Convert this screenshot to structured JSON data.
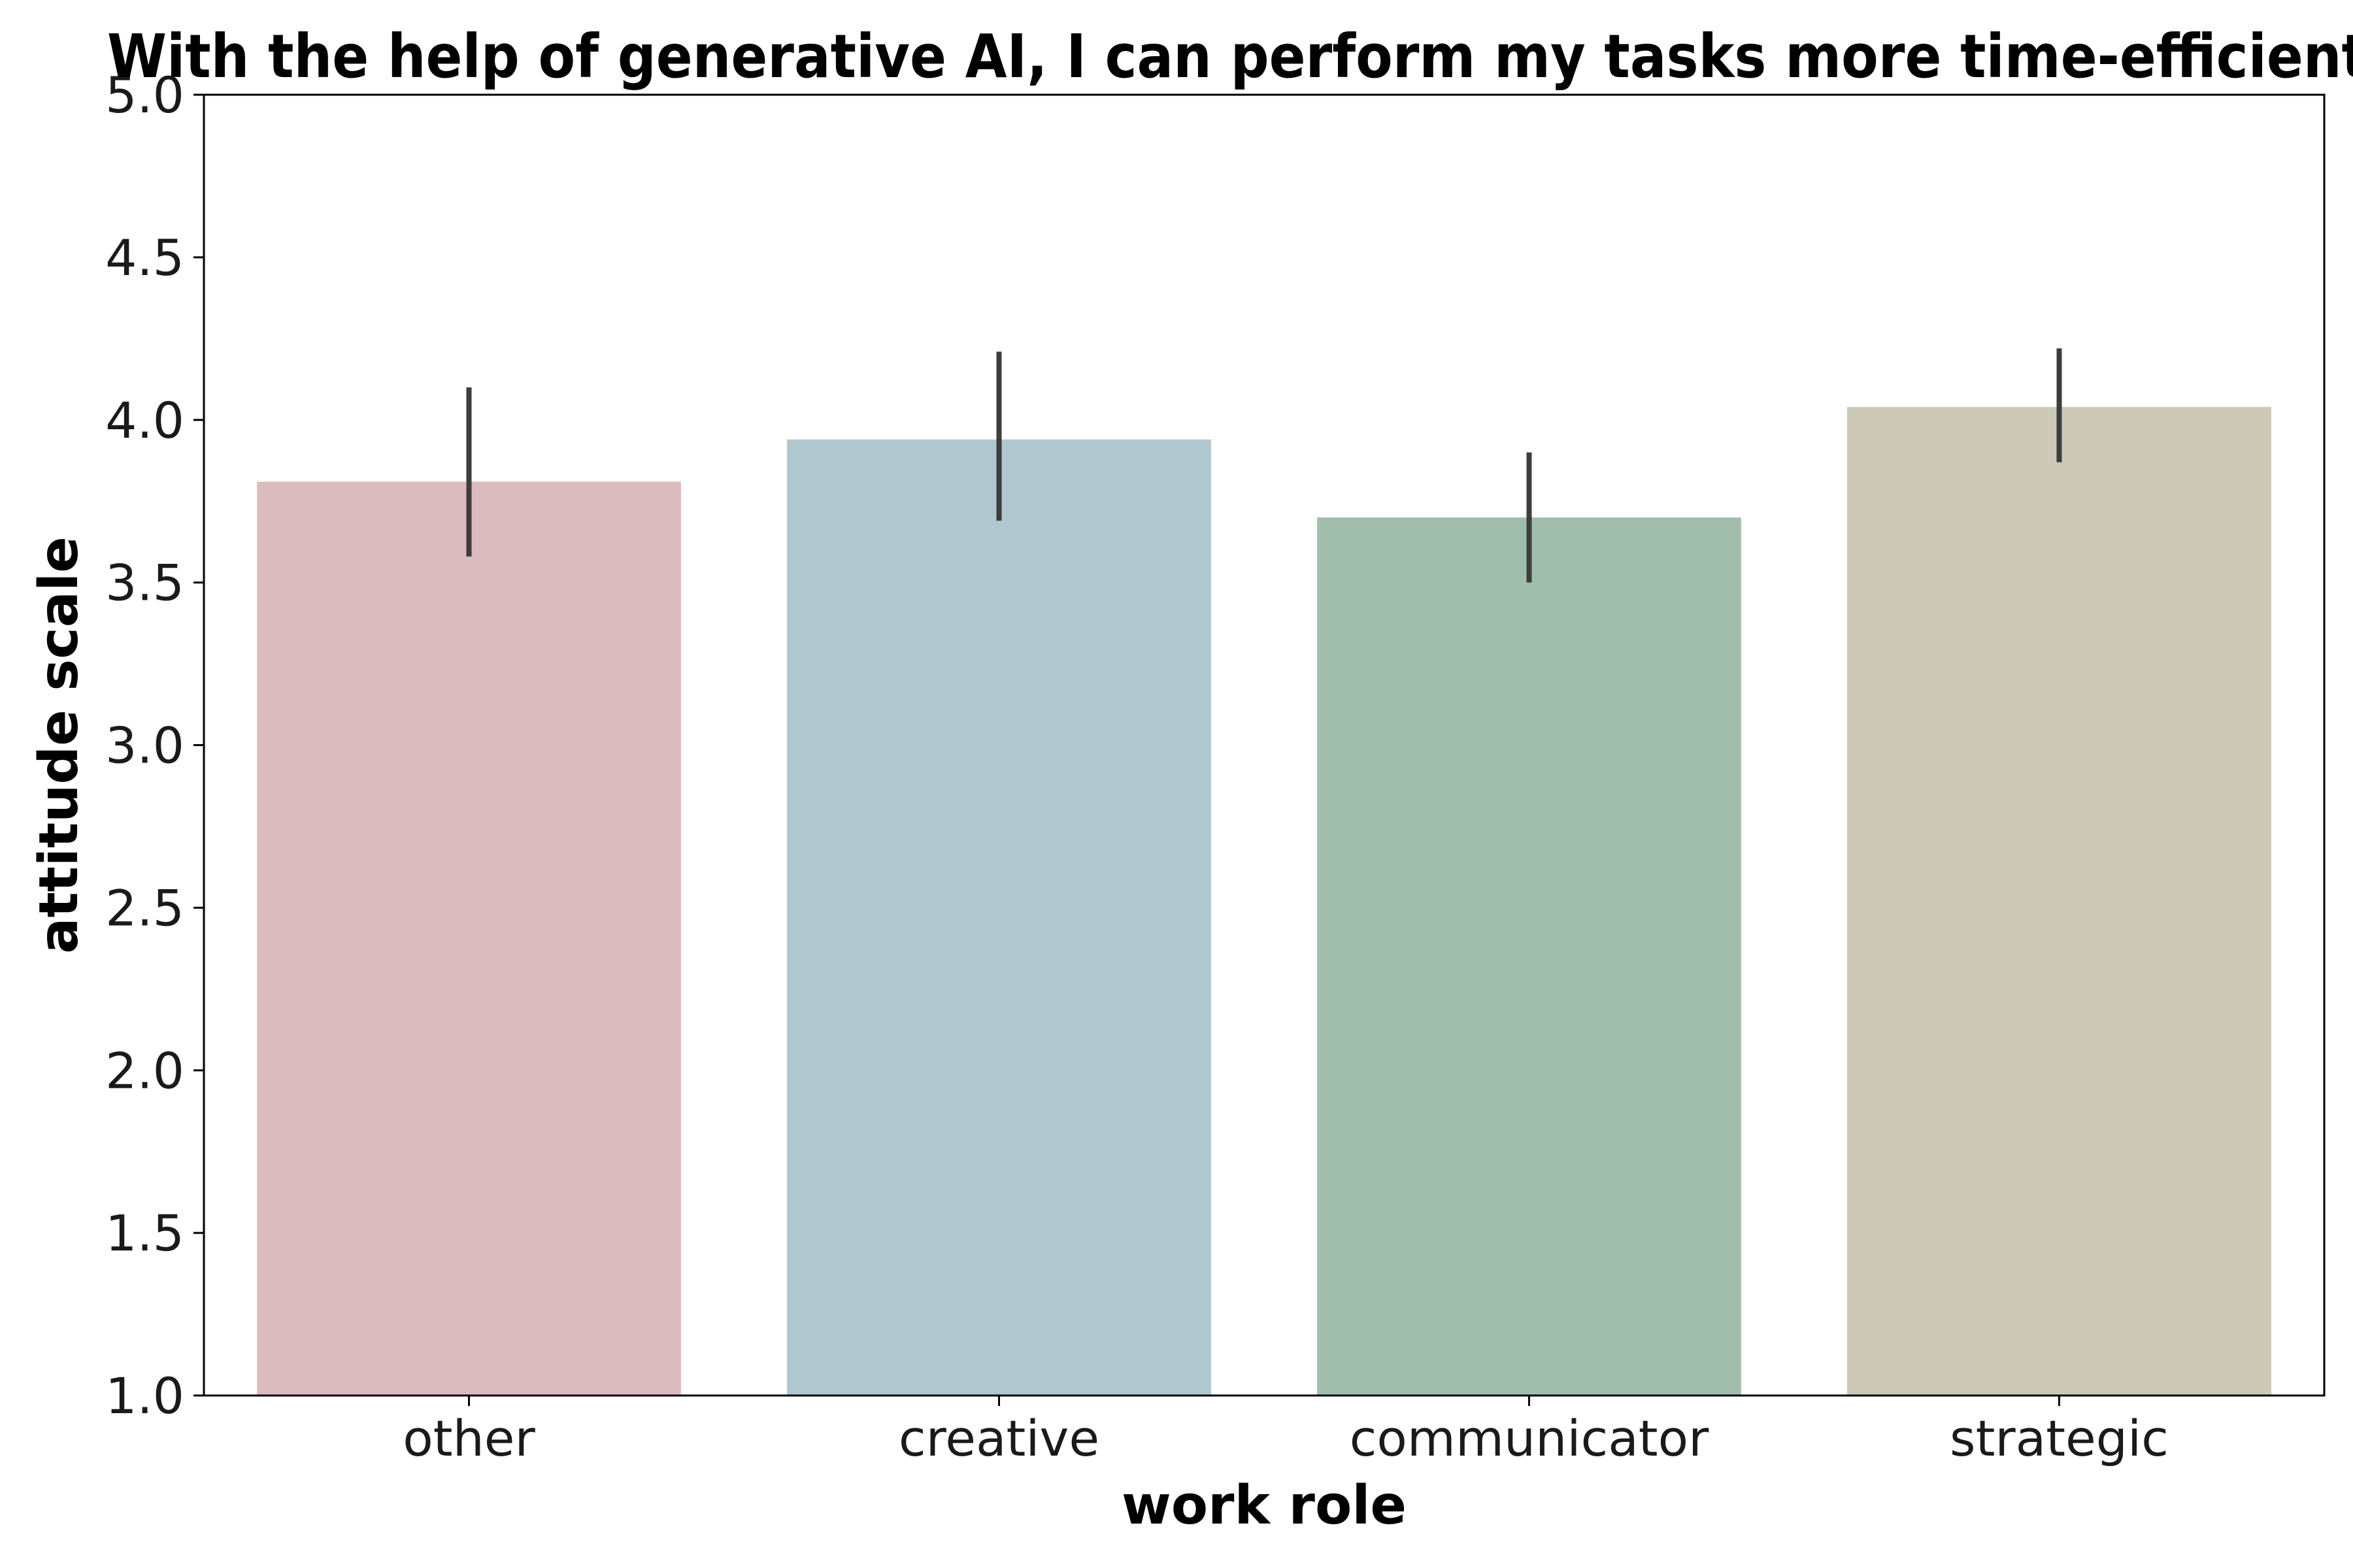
{
  "chart_data": {
    "type": "bar",
    "title": "With the help of generative AI, I can perform my tasks more time-efficiently",
    "xlabel": "work role",
    "ylabel": "attitude scale",
    "categories": [
      "other",
      "creative",
      "communicator",
      "strategic"
    ],
    "values": [
      3.81,
      3.94,
      3.7,
      4.04
    ],
    "error_low": [
      3.58,
      3.69,
      3.5,
      3.87
    ],
    "error_high": [
      4.1,
      4.21,
      3.9,
      4.22
    ],
    "colors": [
      "#dcbbbf",
      "#b1c7cf",
      "#a1bdab",
      "#ccc9b7"
    ],
    "error_color": "#3d3d3d",
    "ylim": [
      1.0,
      5.0
    ],
    "yticks": [
      "1.0",
      "1.5",
      "2.0",
      "2.5",
      "3.0",
      "3.5",
      "4.0",
      "4.5",
      "5.0"
    ],
    "grid": false,
    "legend": "none"
  }
}
